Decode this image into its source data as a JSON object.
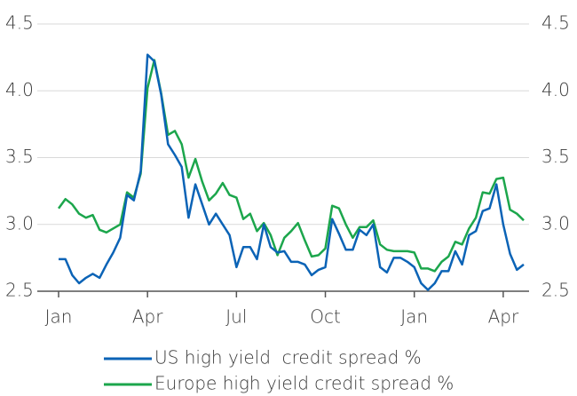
{
  "chart_data": {
    "type": "line",
    "categories": [
      "Jan",
      null,
      null,
      null,
      null,
      null,
      null,
      null,
      null,
      null,
      null,
      null,
      null,
      "Apr",
      null,
      null,
      null,
      null,
      null,
      null,
      null,
      null,
      null,
      null,
      null,
      null,
      "Jul",
      null,
      null,
      null,
      null,
      null,
      null,
      null,
      null,
      null,
      null,
      null,
      null,
      "Oct",
      null,
      null,
      null,
      null,
      null,
      null,
      null,
      null,
      null,
      null,
      null,
      null,
      "Jan",
      null,
      null,
      null,
      null,
      null,
      null,
      null,
      null,
      null,
      null,
      null,
      null,
      "Apr",
      null,
      null,
      null
    ],
    "series": [
      {
        "name": "US high yield  credit spread %",
        "color": "#0b63b6",
        "values": [
          2.74,
          2.74,
          2.62,
          2.56,
          2.6,
          2.63,
          2.6,
          2.7,
          2.79,
          2.9,
          3.22,
          3.18,
          3.4,
          4.27,
          4.22,
          3.97,
          3.6,
          3.52,
          3.43,
          3.05,
          3.3,
          3.15,
          3.0,
          3.08,
          3.0,
          2.92,
          2.68,
          2.83,
          2.83,
          2.74,
          3.0,
          2.83,
          2.79,
          2.8,
          2.72,
          2.72,
          2.7,
          2.62,
          2.66,
          2.68,
          3.04,
          2.93,
          2.81,
          2.81,
          2.96,
          2.92,
          3.0,
          2.68,
          2.64,
          2.75,
          2.75,
          2.72,
          2.68,
          2.56,
          2.51,
          2.56,
          2.65,
          2.65,
          2.8,
          2.7,
          2.92,
          2.95,
          3.1,
          3.12,
          3.3,
          3.0,
          2.78,
          2.66,
          2.7
        ]
      },
      {
        "name": "Europe high yield credit spread %",
        "color": "#1ca64c",
        "values": [
          3.12,
          3.19,
          3.15,
          3.08,
          3.05,
          3.07,
          2.96,
          2.94,
          2.97,
          3.0,
          3.24,
          3.2,
          3.38,
          4.02,
          4.23,
          3.98,
          3.67,
          3.7,
          3.6,
          3.35,
          3.49,
          3.32,
          3.18,
          3.23,
          3.31,
          3.22,
          3.2,
          3.04,
          3.08,
          2.95,
          3.01,
          2.92,
          2.77,
          2.9,
          2.95,
          3.01,
          2.88,
          2.76,
          2.77,
          2.82,
          3.14,
          3.12,
          3.0,
          2.9,
          2.98,
          2.98,
          3.03,
          2.85,
          2.81,
          2.8,
          2.8,
          2.8,
          2.79,
          2.67,
          2.67,
          2.65,
          2.72,
          2.76,
          2.87,
          2.85,
          2.97,
          3.05,
          3.24,
          3.23,
          3.34,
          3.35,
          3.11,
          3.08,
          3.03
        ]
      }
    ],
    "ylim": [
      2.5,
      4.5
    ],
    "yticks": [
      2.5,
      {
        "value": 3,
        "label": "3.0"
      },
      3.5,
      {
        "value": 4,
        "label": "4.0"
      },
      4.5
    ],
    "y2lim": [
      2.5,
      4.5
    ],
    "y2ticks": [
      2.5,
      {
        "value": 3,
        "label": "3.0"
      },
      3.5,
      {
        "value": 4,
        "label": "4.0"
      },
      4.5
    ],
    "grid": true
  }
}
